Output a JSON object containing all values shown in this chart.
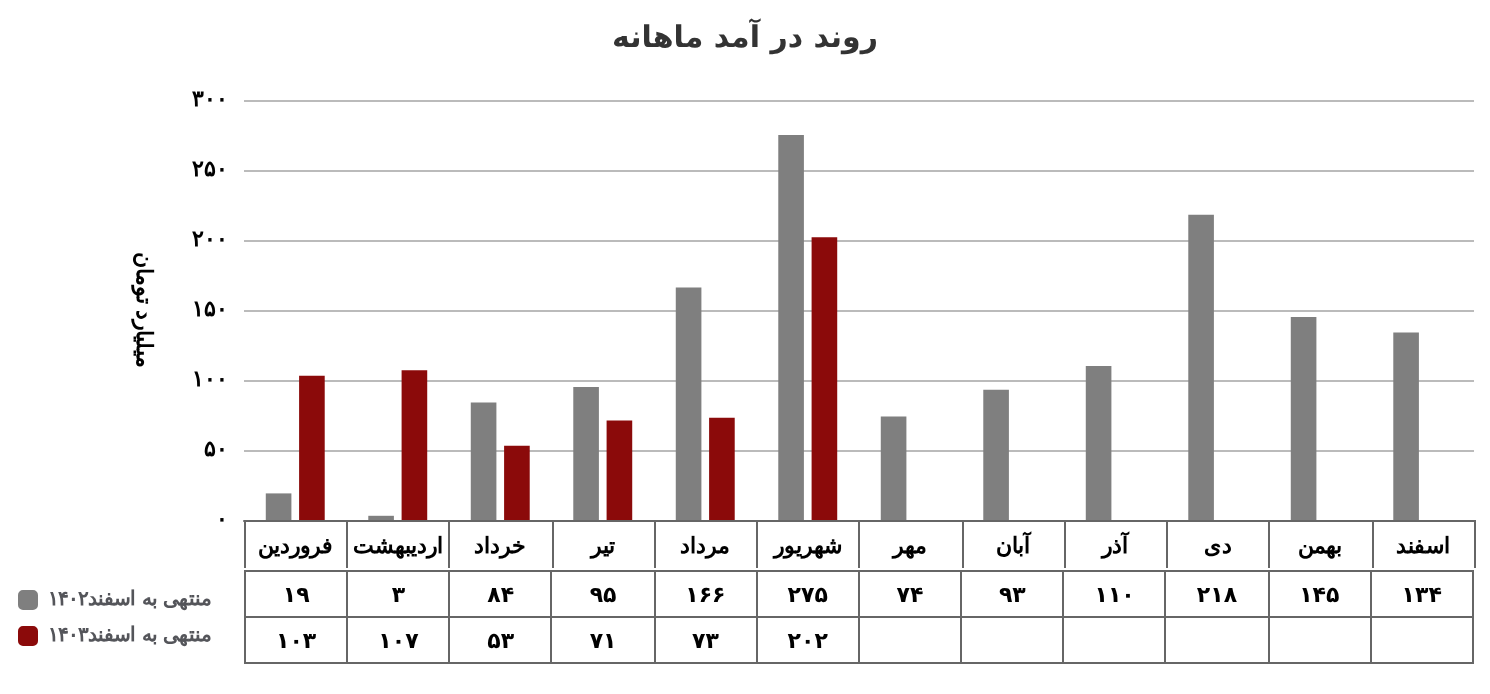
{
  "chart_data": {
    "type": "bar",
    "title": "روند در آمد ماهانه",
    "ylabel": "میلیارد تومان",
    "categories": [
      "فروردین",
      "اردیبهشت",
      "خرداد",
      "تیر",
      "مرداد",
      "شهریور",
      "مهر",
      "آبان",
      "آذر",
      "دی",
      "بهمن",
      "اسفند"
    ],
    "series": [
      {
        "name": "منتهی به اسفند۱۴۰۲",
        "color": "#7f7f7f",
        "values": [
          19,
          3,
          84,
          95,
          166,
          275,
          74,
          93,
          110,
          218,
          145,
          134
        ],
        "value_labels": [
          "۱۹",
          "۳",
          "۸۴",
          "۹۵",
          "۱۶۶",
          "۲۷۵",
          "۷۴",
          "۹۳",
          "۱۱۰",
          "۲۱۸",
          "۱۴۵",
          "۱۳۴"
        ]
      },
      {
        "name": "منتهی به اسفند۱۴۰۳",
        "color": "#8b0a0a",
        "values": [
          103,
          107,
          53,
          71,
          73,
          202,
          null,
          null,
          null,
          null,
          null,
          null
        ],
        "value_labels": [
          "۱۰۳",
          "۱۰۷",
          "۵۳",
          "۷۱",
          "۷۳",
          "۲۰۲",
          null,
          null,
          null,
          null,
          null,
          null
        ]
      }
    ],
    "ylim": [
      0,
      300
    ],
    "yticks": [
      {
        "value": 0,
        "label": "۰"
      },
      {
        "value": 50,
        "label": "۵۰"
      },
      {
        "value": 100,
        "label": "۱۰۰"
      },
      {
        "value": 150,
        "label": "۱۵۰"
      },
      {
        "value": 200,
        "label": "۲۰۰"
      },
      {
        "value": 250,
        "label": "۲۵۰"
      },
      {
        "value": 300,
        "label": "۳۰۰"
      }
    ],
    "grid": "y",
    "legend": "bottom left"
  }
}
